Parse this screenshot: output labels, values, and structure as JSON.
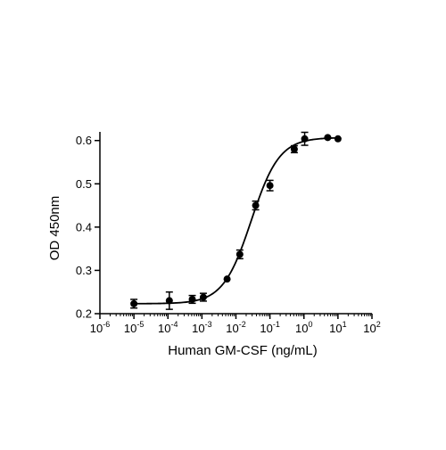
{
  "chart_data": {
    "type": "scatter",
    "title": "",
    "xlabel": "Human GM-CSF (ng/mL)",
    "ylabel": "OD 450nm",
    "x_scale": "log",
    "xlim": [
      1e-06,
      100
    ],
    "ylim": [
      0.2,
      0.62
    ],
    "x_ticks": [
      {
        "value": 1e-06,
        "base": "10",
        "exp": "-6"
      },
      {
        "value": 1e-05,
        "base": "10",
        "exp": "-5"
      },
      {
        "value": 0.0001,
        "base": "10",
        "exp": "-4"
      },
      {
        "value": 0.001,
        "base": "10",
        "exp": "-3"
      },
      {
        "value": 0.01,
        "base": "10",
        "exp": "-2"
      },
      {
        "value": 0.1,
        "base": "10",
        "exp": "-1"
      },
      {
        "value": 1,
        "base": "10",
        "exp": "0"
      },
      {
        "value": 10,
        "base": "10",
        "exp": "1"
      },
      {
        "value": 100,
        "base": "10",
        "exp": "2"
      }
    ],
    "y_ticks": [
      {
        "value": 0.2,
        "label": "0.2"
      },
      {
        "value": 0.3,
        "label": "0.3"
      },
      {
        "value": 0.4,
        "label": "0.4"
      },
      {
        "value": 0.5,
        "label": "0.5"
      },
      {
        "value": 0.6,
        "label": "0.6"
      }
    ],
    "grid": false,
    "legend": "none",
    "points": [
      {
        "x": 1e-05,
        "y": 0.223,
        "err": 0.01
      },
      {
        "x": 0.00011,
        "y": 0.23,
        "err": 0.02
      },
      {
        "x": 0.00052,
        "y": 0.233,
        "err": 0.009
      },
      {
        "x": 0.0011,
        "y": 0.238,
        "err": 0.009
      },
      {
        "x": 0.0055,
        "y": 0.28,
        "err": 0.0
      },
      {
        "x": 0.013,
        "y": 0.337,
        "err": 0.01
      },
      {
        "x": 0.038,
        "y": 0.45,
        "err": 0.01
      },
      {
        "x": 0.1,
        "y": 0.496,
        "err": 0.012
      },
      {
        "x": 0.52,
        "y": 0.58,
        "err": 0.008
      },
      {
        "x": 1.05,
        "y": 0.604,
        "err": 0.015
      },
      {
        "x": 5.0,
        "y": 0.607,
        "err": 0.0
      },
      {
        "x": 10.0,
        "y": 0.604,
        "err": 0.0
      }
    ],
    "fit_curve": {
      "model": "4PL",
      "bottom": 0.223,
      "top": 0.607,
      "log_ec50": -1.55,
      "hill": 1.05,
      "x_range": [
        1e-05,
        10
      ]
    },
    "colors": {
      "marker": "#000000",
      "line": "#000000",
      "axis": "#000000"
    }
  }
}
